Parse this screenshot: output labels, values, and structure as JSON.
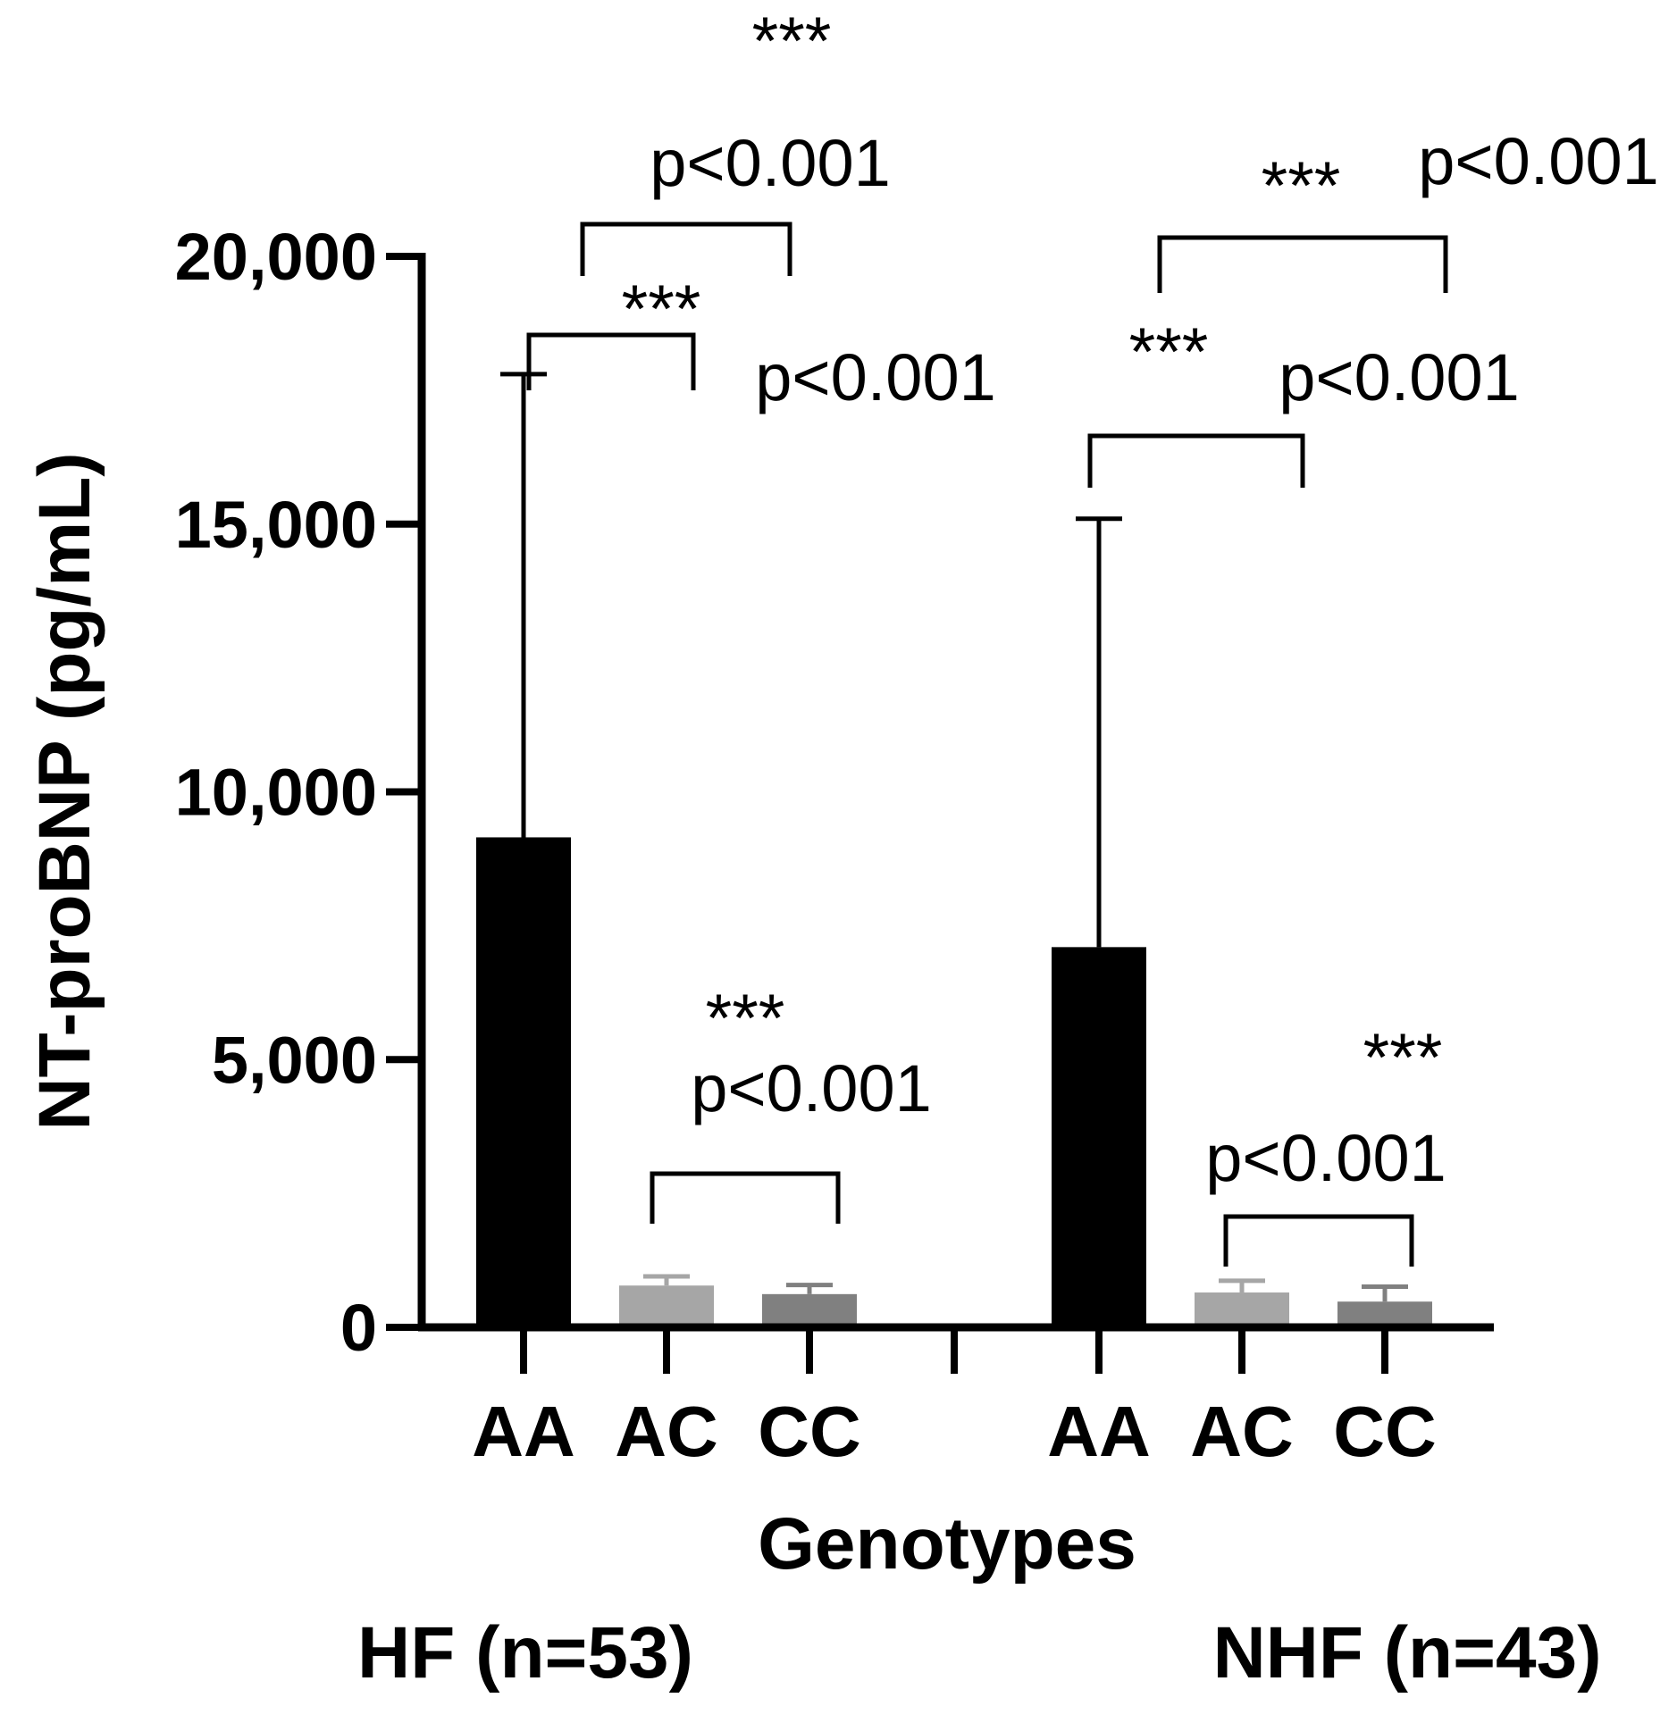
{
  "chart_data": {
    "type": "bar",
    "ylabel": "NT-proBNP (pg/mL)",
    "xlabel": "Genotypes",
    "ylim": [
      0,
      20000
    ],
    "yticks": [
      0,
      5000,
      10000,
      15000,
      20000
    ],
    "ytick_labels": [
      "0",
      "5,000",
      "10,000",
      "15,000",
      "20,000"
    ],
    "grid": false,
    "groups": [
      {
        "label": "HF (n=53)",
        "bars": [
          {
            "category": "AA",
            "value": 9150,
            "error_upper": 17800,
            "color": "#000000"
          },
          {
            "category": "AC",
            "value": 780,
            "error_upper": 950,
            "color": "#a6a6a6"
          },
          {
            "category": "CC",
            "value": 620,
            "error_upper": 790,
            "color": "#808080"
          }
        ]
      },
      {
        "label": "NHF (n=43)",
        "bars": [
          {
            "category": "AA",
            "value": 7100,
            "error_upper": 15100,
            "color": "#000000"
          },
          {
            "category": "AC",
            "value": 650,
            "error_upper": 870,
            "color": "#a6a6a6"
          },
          {
            "category": "CC",
            "value": 480,
            "error_upper": 760,
            "color": "#808080"
          }
        ]
      }
    ],
    "comparisons": [
      {
        "group": "HF (n=53)",
        "from": "AA",
        "to": "AC",
        "stars": "***",
        "p": "p<0.001"
      },
      {
        "group": "HF (n=53)",
        "from": "AA",
        "to": "CC",
        "stars": "***",
        "p": "p<0.001"
      },
      {
        "group": "HF (n=53)",
        "from": "AC",
        "to": "CC",
        "stars": "***",
        "p": "p<0.001"
      },
      {
        "group": "NHF (n=43)",
        "from": "AA",
        "to": "AC",
        "stars": "***",
        "p": "p<0.001"
      },
      {
        "group": "NHF (n=43)",
        "from": "AA",
        "to": "CC",
        "stars": "***",
        "p": "p<0.001"
      },
      {
        "group": "NHF (n=43)",
        "from": "AC",
        "to": "CC",
        "stars": "***",
        "p": "p<0.001"
      }
    ]
  }
}
